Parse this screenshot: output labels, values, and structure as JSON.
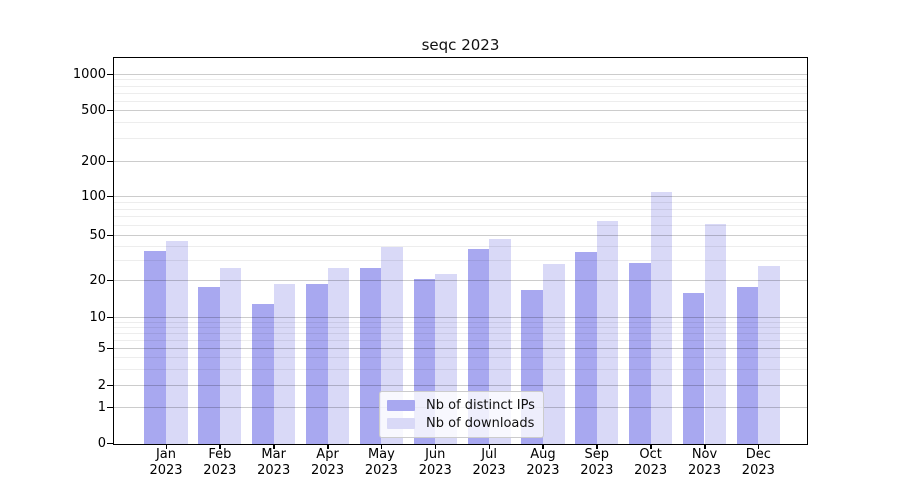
{
  "chart_data": {
    "type": "bar",
    "title": "seqc 2023",
    "categories": [
      "Jan 2023",
      "Feb 2023",
      "Mar 2023",
      "Apr 2023",
      "May 2023",
      "Jun 2023",
      "Jul 2023",
      "Aug 2023",
      "Sep 2023",
      "Oct 2023",
      "Nov 2023",
      "Dec 2023"
    ],
    "series": [
      {
        "name": "Nb of distinct IPs",
        "color": "#a8a8f0",
        "values": [
          37,
          18,
          13,
          19,
          26,
          21,
          38,
          17,
          36,
          29,
          16,
          18
        ]
      },
      {
        "name": "Nb of downloads",
        "color": "#d9d9f7",
        "values": [
          45,
          26,
          19,
          26,
          40,
          23,
          47,
          28,
          65,
          110,
          62,
          27
        ]
      }
    ],
    "xlabel": "",
    "ylabel": "",
    "yscale": "symlog",
    "ylim": [
      0,
      1000
    ],
    "yticks": [
      0,
      1,
      2,
      5,
      10,
      20,
      50,
      100,
      200,
      500,
      1000
    ],
    "minor_yticks": [
      3,
      4,
      6,
      7,
      8,
      9,
      30,
      40,
      60,
      70,
      80,
      90,
      300,
      400,
      600,
      700,
      800,
      900
    ],
    "grid": true,
    "legend": {
      "position": "lower center",
      "entries": [
        "Nb of distinct IPs",
        "Nb of downloads"
      ]
    }
  }
}
